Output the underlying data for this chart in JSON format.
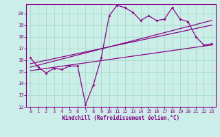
{
  "bg_color": "#cceee8",
  "grid_color": "#aaddcc",
  "line_color": "#880088",
  "xlabel": "Windchill (Refroidissement éolien,°C)",
  "xlim": [
    -0.5,
    23.5
  ],
  "ylim": [
    12,
    20.8
  ],
  "yticks": [
    12,
    13,
    14,
    15,
    16,
    17,
    18,
    19,
    20
  ],
  "xticks": [
    0,
    1,
    2,
    3,
    4,
    5,
    6,
    7,
    8,
    9,
    10,
    11,
    12,
    13,
    14,
    15,
    16,
    17,
    18,
    19,
    20,
    21,
    22,
    23
  ],
  "series1_x": [
    0,
    1,
    2,
    3,
    4,
    5,
    6,
    7,
    8,
    9,
    10,
    11,
    12,
    13,
    14,
    15,
    16,
    17,
    18,
    19,
    20,
    21,
    22,
    23
  ],
  "series1_y": [
    16.2,
    15.4,
    14.9,
    15.3,
    15.2,
    15.5,
    15.5,
    12.2,
    13.9,
    16.2,
    19.8,
    20.7,
    20.5,
    20.1,
    19.4,
    19.8,
    19.4,
    19.5,
    20.5,
    19.5,
    19.3,
    18.0,
    17.3,
    17.4
  ],
  "series2_x": [
    0,
    23
  ],
  "series2_y": [
    15.7,
    19.0
  ],
  "series3_x": [
    0,
    23
  ],
  "series3_y": [
    15.4,
    19.4
  ],
  "series4_x": [
    0,
    23
  ],
  "series4_y": [
    15.1,
    17.3
  ],
  "xlabel_fontsize": 5.5,
  "tick_fontsize": 5.0
}
